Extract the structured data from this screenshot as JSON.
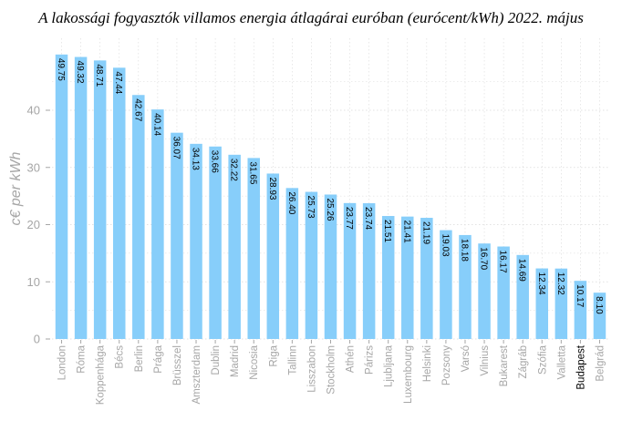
{
  "chart_data": {
    "type": "bar",
    "title": "A lakossági fogyasztók villamos energia átlagárai euróban (eurócent/kWh) 2022. május",
    "ylabel": "c€ per kWh",
    "xlabel": "",
    "ylim": [
      0,
      50
    ],
    "yticks": [
      0,
      10,
      20,
      30,
      40
    ],
    "grid": true,
    "categories": [
      "London",
      "Róma",
      "Koppenhága",
      "Bécs",
      "Berlin",
      "Prága",
      "Brüsszel",
      "Amszterdam",
      "Dublin",
      "Madrid",
      "Nicosia",
      "Riga",
      "Tallinn",
      "Lisszabon",
      "Stockholm",
      "Athén",
      "Párizs",
      "Ljubljana",
      "Luxembourg",
      "Helsinki",
      "Pozsony",
      "Varsó",
      "Vilnius",
      "Bukarest",
      "Zágráb",
      "Szófia",
      "Valletta",
      "Budapest",
      "Belgrád"
    ],
    "values": [
      49.75,
      49.32,
      48.71,
      47.44,
      42.67,
      40.14,
      36.07,
      34.13,
      33.66,
      32.22,
      31.65,
      28.93,
      26.4,
      25.73,
      25.26,
      23.77,
      23.74,
      21.51,
      21.41,
      21.19,
      19.03,
      18.18,
      16.7,
      16.17,
      14.69,
      12.34,
      12.32,
      10.17,
      8.1
    ],
    "value_labels": [
      "49.75",
      "49.32",
      "48.71",
      "47.44",
      "42.67",
      "40.14",
      "36.07",
      "34.13",
      "33.66",
      "32.22",
      "31.65",
      "28.93",
      "26.40",
      "25.73",
      "25.26",
      "23.77",
      "23.74",
      "21.51",
      "21.41",
      "21.19",
      "19.03",
      "18.18",
      "16.70",
      "16.17",
      "14.69",
      "12.34",
      "12.32",
      "10.17",
      "8.10"
    ],
    "highlight_category": "Budapest",
    "colors": {
      "bar": "#87cefa",
      "grid": "#d9d9d9",
      "axis_text": "#a6a6a6",
      "highlight_text": "#000000"
    }
  }
}
